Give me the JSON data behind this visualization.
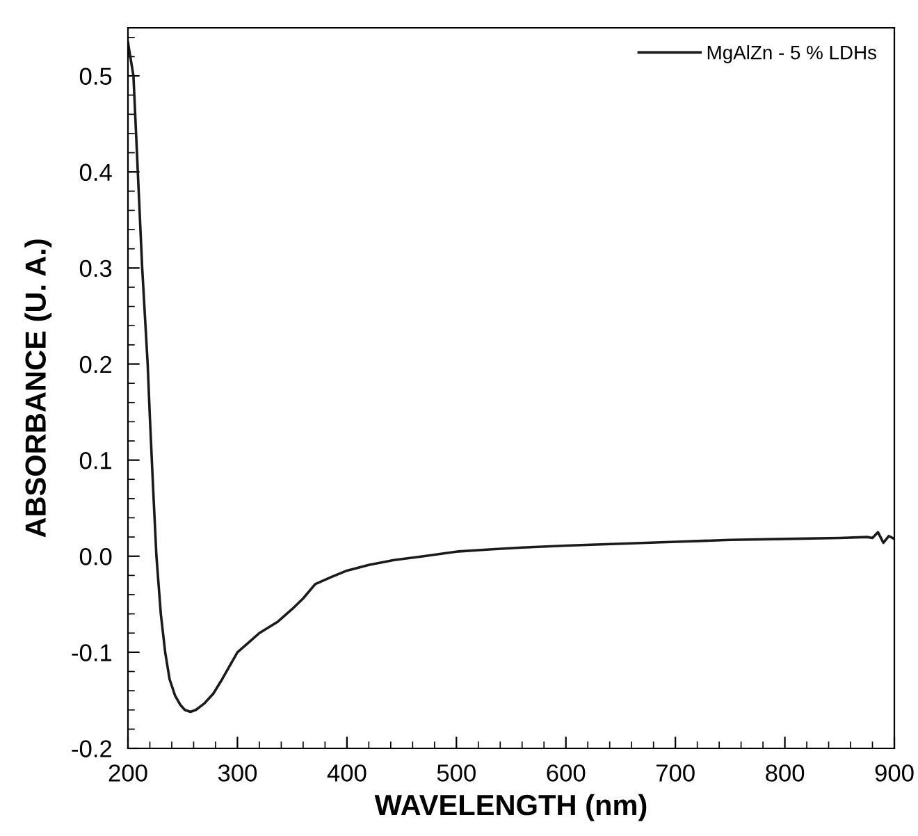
{
  "chart_data": {
    "type": "line",
    "xlabel": "WAVELENGTH (nm)",
    "ylabel": "ABSORBANCE (U. A.)",
    "x": [
      200,
      205,
      209,
      213,
      218,
      220,
      223,
      226,
      230,
      234,
      238,
      243,
      248,
      252,
      257,
      262,
      270,
      278,
      285,
      294,
      300,
      310,
      320,
      337,
      350,
      360,
      371,
      385,
      400,
      420,
      443,
      470,
      502,
      530,
      560,
      600,
      650,
      700,
      750,
      800,
      850,
      875,
      880,
      885,
      890,
      895,
      900
    ],
    "series": [
      {
        "name": "MgAlZn - 5 % LDHs",
        "color": "#1a1a1a",
        "values": [
          0.535,
          0.5,
          0.4,
          0.3,
          0.2,
          0.145,
          0.07,
          0.0,
          -0.06,
          -0.1,
          -0.128,
          -0.145,
          -0.155,
          -0.16,
          -0.162,
          -0.16,
          -0.153,
          -0.143,
          -0.13,
          -0.112,
          -0.1,
          -0.09,
          -0.08,
          -0.068,
          -0.055,
          -0.044,
          -0.029,
          -0.022,
          -0.015,
          -0.009,
          -0.004,
          0.0,
          0.005,
          0.007,
          0.009,
          0.011,
          0.013,
          0.015,
          0.017,
          0.018,
          0.019,
          0.02,
          0.019,
          0.025,
          0.014,
          0.021,
          0.018
        ]
      }
    ],
    "xlim": [
      200,
      900
    ],
    "xticks": [
      200,
      300,
      400,
      500,
      600,
      700,
      800,
      900
    ],
    "ylim": [
      -0.2,
      0.55
    ],
    "yticks": [
      -0.2,
      -0.1,
      {
        "value": 0,
        "label": "0.0"
      },
      0.1,
      0.2,
      0.3,
      0.4,
      0.5
    ],
    "grid": false,
    "legend": "top right",
    "line_style": "solid",
    "marker": "none"
  }
}
